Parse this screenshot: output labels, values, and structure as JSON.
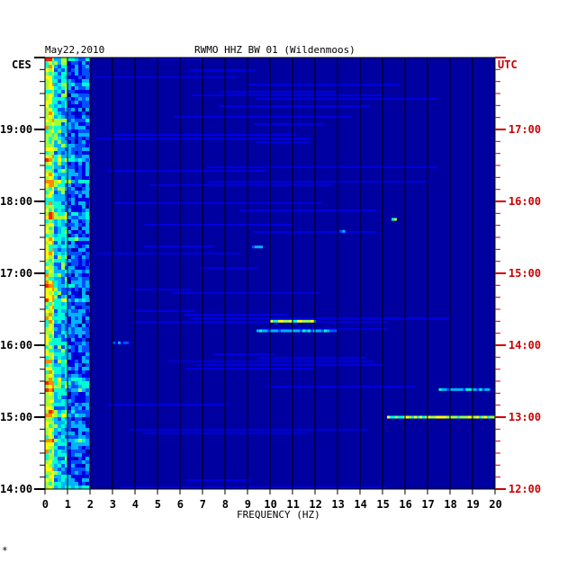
{
  "header": {
    "date": "May22,2010",
    "station": "RWMO HHZ BW 01 (Wildenmoos)"
  },
  "footer": {
    "mark": "*"
  },
  "colors": {
    "background": "#0000a0",
    "grid": "#000000",
    "left_axis_text": "#000000",
    "right_axis_text": "#cc0000",
    "palette": [
      "#00009c",
      "#0000e0",
      "#0050ff",
      "#00b4ff",
      "#00ffd2",
      "#a0ff3c",
      "#ffff00",
      "#ff8c00",
      "#ff2000"
    ]
  },
  "chart_data": {
    "type": "heatmap",
    "title": "RWMO HHZ BW 01 (Wildenmoos)",
    "xlabel": "FREQUENCY (HZ)",
    "x_range": [
      0,
      20
    ],
    "x_ticks": [
      "0",
      "1",
      "2",
      "3",
      "4",
      "5",
      "6",
      "7",
      "8",
      "9",
      "10",
      "11",
      "12",
      "13",
      "14",
      "15",
      "16",
      "17",
      "18",
      "19",
      "20"
    ],
    "left_axis": {
      "zone": "CES",
      "ticks": [
        {
          "hour": 14,
          "label": "14:00"
        },
        {
          "hour": 15,
          "label": "15:00"
        },
        {
          "hour": 16,
          "label": "16:00"
        },
        {
          "hour": 17,
          "label": "17:00"
        },
        {
          "hour": 18,
          "label": "18:00"
        },
        {
          "hour": 19,
          "label": "19:00"
        }
      ]
    },
    "right_axis": {
      "zone": "UTC",
      "ticks": [
        {
          "hour": 12,
          "label": "12:00"
        },
        {
          "hour": 13,
          "label": "13:00"
        },
        {
          "hour": 14,
          "label": "14:00"
        },
        {
          "hour": 15,
          "label": "15:00"
        },
        {
          "hour": 16,
          "label": "16:00"
        },
        {
          "hour": 17,
          "label": "17:00"
        }
      ]
    },
    "y_range_ces_hours": [
      14,
      20
    ],
    "grid": true,
    "energy_bands": [
      {
        "freq_range": [
          0,
          0.4
        ],
        "level": "high"
      },
      {
        "freq_range": [
          0.4,
          1.0
        ],
        "level": "medium"
      },
      {
        "freq_range": [
          1.0,
          2.0
        ],
        "level": "low"
      },
      {
        "freq_range": [
          2.0,
          20
        ],
        "level": "background"
      }
    ],
    "events": [
      {
        "ces_time": "16:12",
        "freq_range": [
          9.4,
          13
        ],
        "level": "medium"
      },
      {
        "ces_time": "16:20",
        "freq_range": [
          10,
          12
        ],
        "level": "high"
      },
      {
        "ces_time": "15:00",
        "freq_range": [
          15.2,
          20
        ],
        "level": "high"
      },
      {
        "ces_time": "15:23",
        "freq_range": [
          17.5,
          19.7
        ],
        "level": "medium"
      },
      {
        "ces_time": "17:45",
        "freq_range": [
          15.4,
          15.6
        ],
        "level": "high"
      },
      {
        "ces_time": "17:35",
        "freq_range": [
          13.1,
          13.3
        ],
        "level": "medium"
      },
      {
        "ces_time": "16:02",
        "freq_range": [
          3.0,
          3.8
        ],
        "level": "low"
      },
      {
        "ces_time": "17:22",
        "freq_range": [
          9.2,
          9.6
        ],
        "level": "medium"
      }
    ]
  }
}
